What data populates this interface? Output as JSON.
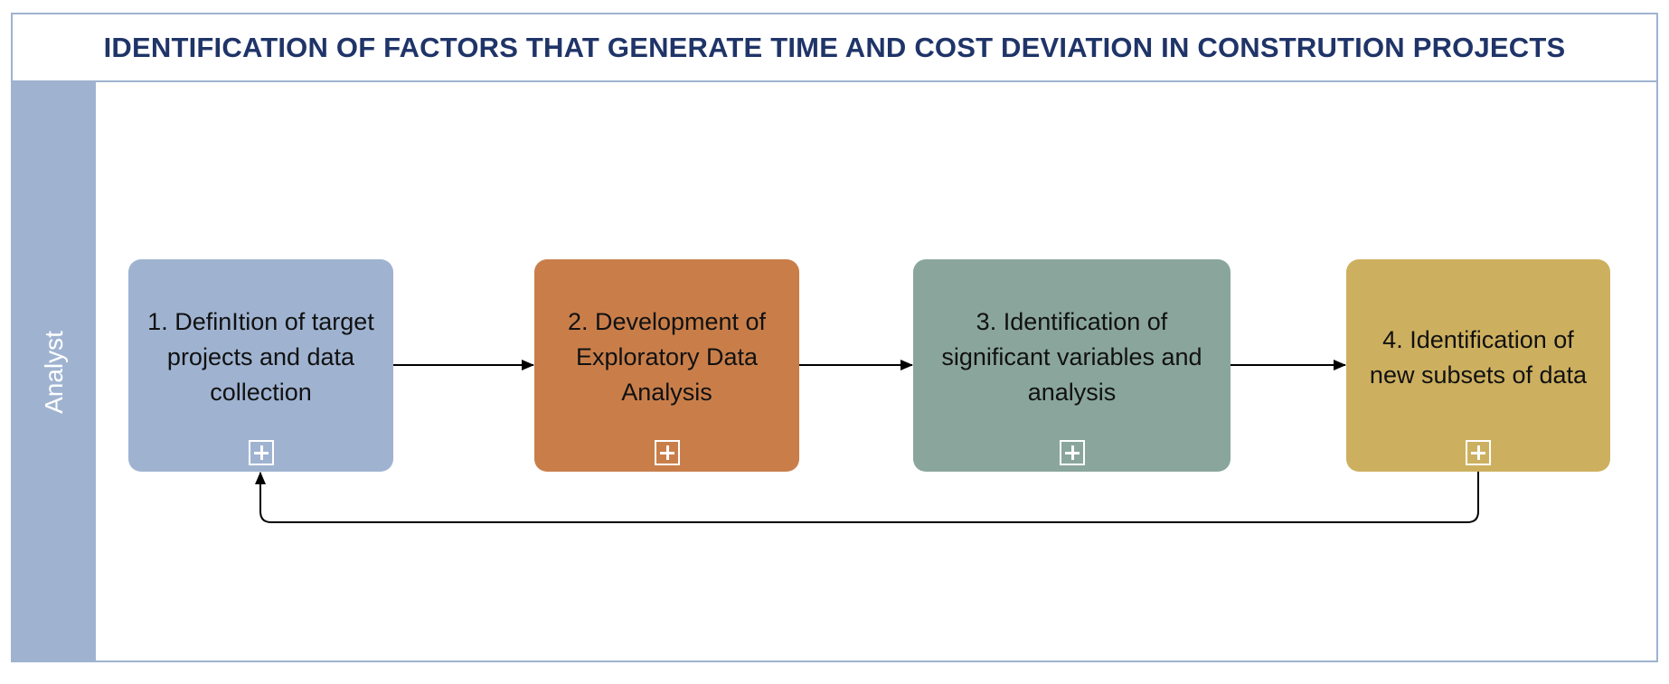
{
  "diagram": {
    "title": "IDENTIFICATION OF FACTORS THAT GENERATE TIME AND COST DEVIATION IN CONSTRUTION PROJECTS",
    "lane": {
      "label": "Analyst",
      "color": "#9fb3d1"
    },
    "tasks": [
      {
        "label": "1. DefinItion of target projects and data collection",
        "color": "#9fb3d1"
      },
      {
        "label": "2. Development of Exploratory Data Analysis",
        "color": "#c97e4a"
      },
      {
        "label": "3. Identification of significant variables and analysis",
        "color": "#8aa69c"
      },
      {
        "label": "4. Identification of new subsets of data",
        "color": "#cdb05f"
      }
    ],
    "flows": [
      {
        "from": 1,
        "to": 2
      },
      {
        "from": 2,
        "to": 3
      },
      {
        "from": 3,
        "to": 4
      },
      {
        "from": 4,
        "to": 1
      }
    ],
    "colors": {
      "title": "#1f3468",
      "border": "#9fb3cf",
      "connector": "#000000"
    }
  }
}
